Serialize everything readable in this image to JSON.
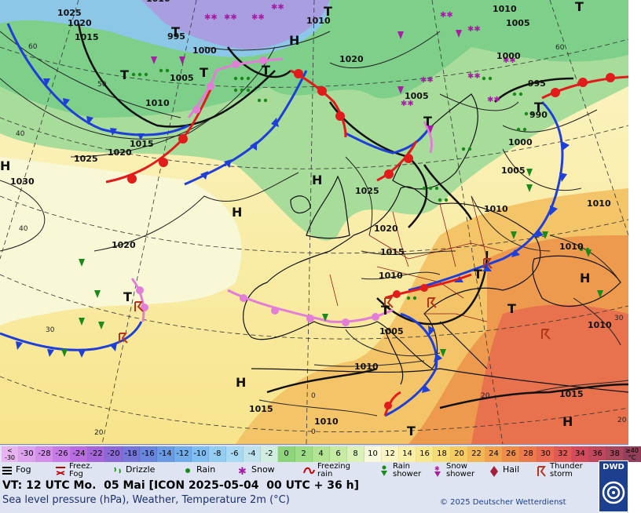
{
  "map": {
    "pressure_labels": [
      {
        "text": "1025"
      },
      {
        "text": "1020"
      },
      {
        "text": "1015"
      },
      {
        "text": "995"
      },
      {
        "text": "1000"
      },
      {
        "text": "1010"
      },
      {
        "text": "1005"
      },
      {
        "text": "1010"
      },
      {
        "text": "1020"
      },
      {
        "text": "1005"
      },
      {
        "text": "1010"
      },
      {
        "text": "1005"
      },
      {
        "text": "1000"
      },
      {
        "text": "995"
      },
      {
        "text": "990"
      },
      {
        "text": "1015"
      },
      {
        "text": "1020"
      },
      {
        "text": "1025"
      },
      {
        "text": "1030"
      },
      {
        "text": "1025"
      },
      {
        "text": "1020"
      },
      {
        "text": "1015"
      },
      {
        "text": "1010"
      },
      {
        "text": "1005"
      },
      {
        "text": "1010"
      },
      {
        "text": "1010"
      },
      {
        "text": "1005"
      },
      {
        "text": "1000"
      },
      {
        "text": "1010"
      },
      {
        "text": "1010"
      },
      {
        "text": "1010"
      },
      {
        "text": "1015"
      },
      {
        "text": "1010"
      },
      {
        "text": "1020"
      },
      {
        "text": "1015"
      },
      {
        "text": "1010"
      }
    ],
    "pressure_centers": [
      {
        "text": "H"
      },
      {
        "text": "H"
      },
      {
        "text": "H"
      },
      {
        "text": "H"
      },
      {
        "text": "H"
      },
      {
        "text": "H"
      },
      {
        "text": "H"
      },
      {
        "text": "T"
      },
      {
        "text": "T"
      },
      {
        "text": "T"
      },
      {
        "text": "T"
      },
      {
        "text": "T"
      },
      {
        "text": "T"
      },
      {
        "text": "T"
      },
      {
        "text": "T"
      },
      {
        "text": "T"
      },
      {
        "text": "T"
      },
      {
        "text": "T"
      },
      {
        "text": "T"
      },
      {
        "text": "T"
      }
    ],
    "grid_labels": [
      {
        "text": "60"
      },
      {
        "text": "50"
      },
      {
        "text": "40"
      },
      {
        "text": "30"
      },
      {
        "text": "20"
      },
      {
        "text": "0"
      },
      {
        "text": "20"
      },
      {
        "text": "60"
      },
      {
        "text": "40"
      },
      {
        "text": "30"
      },
      {
        "text": "20"
      },
      {
        "text": "0"
      }
    ]
  },
  "legend": {
    "temperature_scale": [
      {
        "label": "<\n-30",
        "color": "#e8b4f0"
      },
      {
        "label": "-30",
        "color": "#dda2ee"
      },
      {
        "label": "-28",
        "color": "#d28ee8"
      },
      {
        "label": "-26",
        "color": "#c67ce4"
      },
      {
        "label": "-24",
        "color": "#b86cdf"
      },
      {
        "label": "-22",
        "color": "#a466d8"
      },
      {
        "label": "-20",
        "color": "#8c6ad6"
      },
      {
        "label": "-18",
        "color": "#7676d8"
      },
      {
        "label": "-16",
        "color": "#6a86dc"
      },
      {
        "label": "-14",
        "color": "#6a9ae2"
      },
      {
        "label": "-12",
        "color": "#72acea"
      },
      {
        "label": "-10",
        "color": "#80bdf0"
      },
      {
        "label": "-8",
        "color": "#94cdf4"
      },
      {
        "label": "-6",
        "color": "#a8d9f4"
      },
      {
        "label": "-4",
        "color": "#bfe3ee"
      },
      {
        "label": "-2",
        "color": "#cfeee0"
      },
      {
        "label": "0",
        "color": "#8fd47c"
      },
      {
        "label": "2",
        "color": "#9edc86"
      },
      {
        "label": "4",
        "color": "#b2e494"
      },
      {
        "label": "6",
        "color": "#c6eca4"
      },
      {
        "label": "8",
        "color": "#daf2b8"
      },
      {
        "label": "10",
        "color": "#f8f8dc"
      },
      {
        "label": "12",
        "color": "#fbf5c4"
      },
      {
        "label": "14",
        "color": "#faf0a8"
      },
      {
        "label": "16",
        "color": "#f8e88c"
      },
      {
        "label": "18",
        "color": "#f6dc74"
      },
      {
        "label": "20",
        "color": "#f4cc62"
      },
      {
        "label": "22",
        "color": "#f2b856"
      },
      {
        "label": "24",
        "color": "#f0a24e"
      },
      {
        "label": "26",
        "color": "#ee8c4a"
      },
      {
        "label": "28",
        "color": "#ec7a4c"
      },
      {
        "label": "30",
        "color": "#e86a50"
      },
      {
        "label": "32",
        "color": "#e05a56"
      },
      {
        "label": "34",
        "color": "#d44c5c"
      },
      {
        "label": "36",
        "color": "#c0485e"
      },
      {
        "label": "38",
        "color": "#a8485e"
      },
      {
        "label": "≥40\n°C",
        "color": "#94405a"
      }
    ],
    "weather_symbols": [
      {
        "icon": "fog-icon",
        "label": "Fog"
      },
      {
        "icon": "freezing-fog-icon",
        "label": "Freez.\nFog"
      },
      {
        "icon": "drizzle-icon",
        "label": "Drizzle"
      },
      {
        "icon": "rain-icon",
        "label": "Rain"
      },
      {
        "icon": "snow-icon",
        "label": "Snow"
      },
      {
        "icon": "freezing-rain-icon",
        "label": "Freezing\nrain"
      },
      {
        "icon": "rain-shower-icon",
        "label": "Rain\nshower"
      },
      {
        "icon": "snow-shower-icon",
        "label": "Snow\nshower"
      },
      {
        "icon": "hail-icon",
        "label": "Hail"
      },
      {
        "icon": "thunderstorm-icon",
        "label": "Thunder\nstorm"
      }
    ],
    "valid_time": "VT: 12 UTC Mo.  05 Mai [ICON 2025-05-04  00 UTC + 36 h]",
    "subtitle": "Sea level pressure (hPa), Weather, Temperature 2m (°C)",
    "copyright": "© 2025 Deutscher Wetterdienst",
    "logo_text": "DWD"
  }
}
